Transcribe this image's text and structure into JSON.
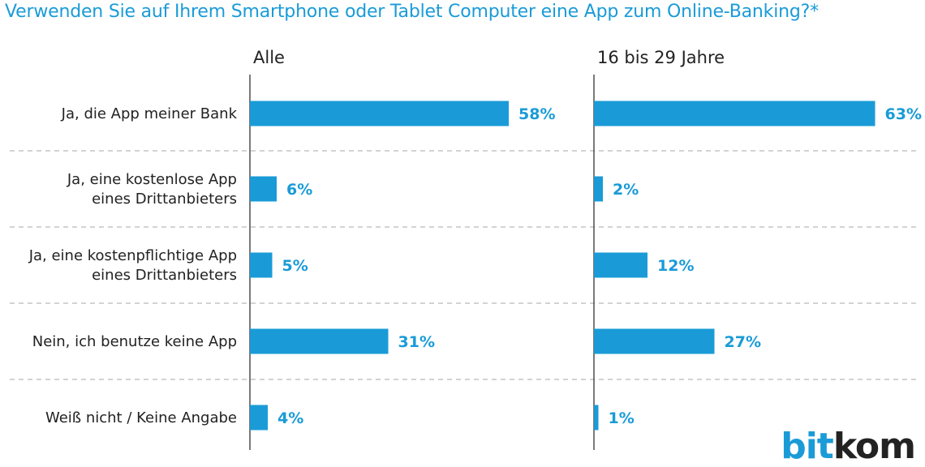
{
  "chart_data": {
    "type": "bar",
    "orientation": "horizontal",
    "title": "Verwenden Sie auf Ihrem Smartphone oder Tablet Computer eine App zum Online-Banking?*",
    "categories": [
      [
        "Ja, die  App meiner Bank"
      ],
      [
        "Ja, eine kostenlose App",
        "eines Drittanbieters"
      ],
      [
        "Ja, eine kostenpflichtige App",
        "eines Drittanbieters"
      ],
      [
        "Nein, ich benutze keine App"
      ],
      [
        "Weiß nicht / Keine Angabe"
      ]
    ],
    "series": [
      {
        "name": "Alle",
        "values": [
          58,
          6,
          5,
          31,
          4
        ],
        "labels": [
          "58%",
          "6%",
          "5%",
          "31%",
          "4%"
        ]
      },
      {
        "name": "16 bis 29 Jahre",
        "values": [
          63,
          2,
          12,
          27,
          1
        ],
        "labels": [
          "63%",
          "2%",
          "12%",
          "27%",
          "1%"
        ]
      }
    ],
    "unit": "%",
    "bar_color": "#1a9bd7",
    "label_color": "#1a9bd7",
    "grid": "dashed separators between categories"
  },
  "logo": {
    "part1": "bit",
    "part2": "kom"
  }
}
